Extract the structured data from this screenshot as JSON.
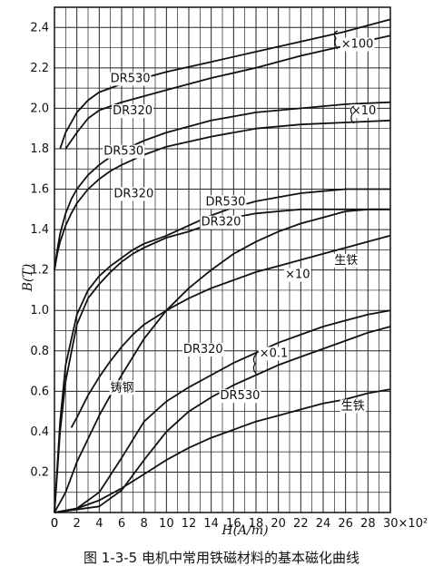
{
  "chart_data": {
    "type": "line",
    "caption": "图 1-3-5  电机中常用铁磁材料的基本磁化曲线",
    "xlabel": "H(A/m)",
    "ylabel": "B(T)",
    "xlim": [
      0,
      30
    ],
    "ylim": [
      0,
      2.5
    ],
    "x_ticks": [
      "0",
      "2",
      "4",
      "6",
      "8",
      "10",
      "12",
      "14",
      "16",
      "18",
      "20",
      "22",
      "24",
      "26",
      "28",
      "30×10²"
    ],
    "y_ticks": [
      "0.2",
      "0.4",
      "0.6",
      "0.8",
      "1.0",
      "1.2",
      "1.4",
      "1.6",
      "1.8",
      "2.0",
      "2.2",
      "2.4"
    ],
    "grid": true,
    "series": [
      {
        "name": "DR530",
        "x": [
          0.5,
          1,
          2,
          3,
          4,
          6,
          8,
          10,
          14,
          18,
          22,
          26,
          30
        ],
        "y": [
          1.8,
          1.88,
          1.98,
          2.04,
          2.08,
          2.12,
          2.15,
          2.18,
          2.23,
          2.28,
          2.33,
          2.38,
          2.44
        ]
      },
      {
        "name": "DR320",
        "x": [
          1,
          2,
          3,
          4,
          6,
          8,
          10,
          14,
          18,
          22,
          26,
          30
        ],
        "y": [
          1.8,
          1.88,
          1.95,
          1.99,
          2.03,
          2.06,
          2.09,
          2.15,
          2.2,
          2.26,
          2.31,
          2.36
        ]
      },
      {
        "name": "DR530",
        "x": [
          0,
          0.25,
          0.5,
          1,
          1.5,
          2,
          3,
          4,
          5,
          6,
          8,
          10,
          14,
          18,
          22,
          26,
          30
        ],
        "y": [
          1.2,
          1.3,
          1.38,
          1.48,
          1.55,
          1.6,
          1.67,
          1.72,
          1.76,
          1.79,
          1.84,
          1.88,
          1.94,
          1.98,
          2.0,
          2.02,
          2.03
        ]
      },
      {
        "name": "DR320",
        "x": [
          0,
          0.25,
          0.5,
          1,
          1.5,
          2,
          3,
          4,
          5,
          6,
          8,
          10,
          14,
          18,
          22,
          26,
          30
        ],
        "y": [
          1.2,
          1.28,
          1.34,
          1.42,
          1.48,
          1.53,
          1.6,
          1.65,
          1.69,
          1.72,
          1.77,
          1.81,
          1.86,
          1.9,
          1.92,
          1.93,
          1.94
        ]
      },
      {
        "name": "DR530",
        "x": [
          0,
          0.5,
          1,
          2,
          3,
          4,
          5,
          6,
          7,
          8,
          10,
          12,
          14,
          16,
          18,
          20,
          22,
          24,
          26,
          28,
          30
        ],
        "y": [
          0,
          0.45,
          0.73,
          0.98,
          1.1,
          1.17,
          1.22,
          1.26,
          1.3,
          1.33,
          1.37,
          1.42,
          1.47,
          1.51,
          1.54,
          1.56,
          1.58,
          1.59,
          1.6,
          1.6,
          1.6
        ]
      },
      {
        "name": "DR320",
        "x": [
          0,
          0.5,
          1,
          2,
          3,
          4,
          5,
          6,
          7,
          8,
          10,
          12,
          14,
          16,
          18,
          20,
          22,
          24,
          26,
          28,
          30
        ],
        "y": [
          0,
          0.4,
          0.65,
          0.93,
          1.06,
          1.13,
          1.19,
          1.24,
          1.28,
          1.31,
          1.36,
          1.39,
          1.43,
          1.46,
          1.48,
          1.49,
          1.5,
          1.5,
          1.5,
          1.5,
          1.5
        ]
      },
      {
        "name": "×10",
        "x": [
          1.5,
          2,
          3,
          4,
          5,
          6,
          7,
          8,
          10,
          12,
          14,
          16,
          18,
          20,
          22,
          24,
          26,
          28,
          30
        ],
        "y": [
          0.42,
          0.47,
          0.58,
          0.67,
          0.75,
          0.82,
          0.88,
          0.93,
          1.0,
          1.06,
          1.11,
          1.15,
          1.19,
          1.22,
          1.25,
          1.28,
          1.31,
          1.34,
          1.37
        ]
      },
      {
        "name": "生铁",
        "x": [
          0,
          1,
          2,
          4,
          6,
          8,
          10,
          12,
          14,
          16,
          18,
          20,
          22,
          24,
          26,
          28,
          30
        ],
        "y": [
          0,
          0.1,
          0.25,
          0.48,
          0.68,
          0.86,
          1.0,
          1.11,
          1.2,
          1.28,
          1.34,
          1.39,
          1.43,
          1.46,
          1.49,
          1.5,
          1.5
        ]
      },
      {
        "name": "DR320",
        "x": [
          0,
          2,
          4,
          6,
          8,
          10,
          12,
          14,
          16,
          18,
          20,
          22,
          24,
          26,
          28,
          30
        ],
        "y": [
          0,
          0.02,
          0.1,
          0.27,
          0.45,
          0.55,
          0.62,
          0.68,
          0.74,
          0.79,
          0.84,
          0.88,
          0.92,
          0.95,
          0.98,
          1.0
        ]
      },
      {
        "name": "DR530",
        "x": [
          0,
          4,
          6,
          8,
          10,
          12,
          14,
          16,
          18,
          20,
          22,
          24,
          26,
          28,
          30
        ],
        "y": [
          0,
          0.03,
          0.11,
          0.26,
          0.4,
          0.5,
          0.57,
          0.63,
          0.68,
          0.73,
          0.77,
          0.81,
          0.85,
          0.89,
          0.92
        ]
      },
      {
        "name": "生铁",
        "x": [
          0,
          2,
          4,
          6,
          8,
          10,
          12,
          14,
          16,
          18,
          20,
          22,
          24,
          26,
          28,
          30
        ],
        "y": [
          0,
          0.02,
          0.06,
          0.12,
          0.19,
          0.26,
          0.32,
          0.37,
          0.41,
          0.45,
          0.48,
          0.51,
          0.54,
          0.56,
          0.59,
          0.61
        ]
      }
    ],
    "annotations": [
      {
        "text": "DR530",
        "x": 5,
        "y": 2.13
      },
      {
        "text": "DR320",
        "x": 5.2,
        "y": 1.97
      },
      {
        "text": "×100",
        "x": 25.6,
        "y": 2.3
      },
      {
        "text": "×10",
        "x": 26.5,
        "y": 1.97
      },
      {
        "text": "DR530",
        "x": 4.4,
        "y": 1.77
      },
      {
        "text": "DR320",
        "x": 5.3,
        "y": 1.56
      },
      {
        "text": "DR530",
        "x": 13.5,
        "y": 1.52
      },
      {
        "text": "DR320",
        "x": 13.1,
        "y": 1.42
      },
      {
        "text": "×10",
        "x": 20.6,
        "y": 1.16
      },
      {
        "text": "生铁",
        "x": 25,
        "y": 1.23
      },
      {
        "text": "铸钢",
        "x": 5,
        "y": 0.6
      },
      {
        "text": "DR320",
        "x": 11.5,
        "y": 0.79
      },
      {
        "text": "×0.1",
        "x": 18.3,
        "y": 0.77
      },
      {
        "text": "DR530",
        "x": 14.8,
        "y": 0.56
      },
      {
        "text": "生铁",
        "x": 25.6,
        "y": 0.51
      }
    ]
  }
}
